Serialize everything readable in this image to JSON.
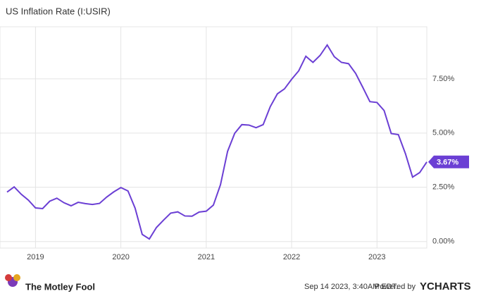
{
  "chart_data": {
    "type": "line",
    "title": "US Inflation Rate (I:USIR)",
    "x": [
      "2018-09",
      "2018-10",
      "2018-11",
      "2018-12",
      "2019-01",
      "2019-02",
      "2019-03",
      "2019-04",
      "2019-05",
      "2019-06",
      "2019-07",
      "2019-08",
      "2019-09",
      "2019-10",
      "2019-11",
      "2019-12",
      "2020-01",
      "2020-02",
      "2020-03",
      "2020-04",
      "2020-05",
      "2020-06",
      "2020-07",
      "2020-08",
      "2020-09",
      "2020-10",
      "2020-11",
      "2020-12",
      "2021-01",
      "2021-02",
      "2021-03",
      "2021-04",
      "2021-05",
      "2021-06",
      "2021-07",
      "2021-08",
      "2021-09",
      "2021-10",
      "2021-11",
      "2021-12",
      "2022-01",
      "2022-02",
      "2022-03",
      "2022-04",
      "2022-05",
      "2022-06",
      "2022-07",
      "2022-08",
      "2022-09",
      "2022-10",
      "2022-11",
      "2022-12",
      "2023-01",
      "2023-02",
      "2023-03",
      "2023-04",
      "2023-05",
      "2023-06",
      "2023-07",
      "2023-08"
    ],
    "series": [
      {
        "name": "US Inflation Rate",
        "color": "#6b3fd4",
        "values": [
          2.28,
          2.52,
          2.18,
          1.91,
          1.55,
          1.52,
          1.86,
          2.0,
          1.79,
          1.65,
          1.81,
          1.75,
          1.71,
          1.76,
          2.05,
          2.29,
          2.49,
          2.33,
          1.54,
          0.33,
          0.12,
          0.65,
          0.99,
          1.31,
          1.37,
          1.18,
          1.17,
          1.36,
          1.4,
          1.68,
          2.62,
          4.16,
          4.99,
          5.39,
          5.37,
          5.25,
          5.39,
          6.22,
          6.81,
          7.04,
          7.48,
          7.87,
          8.54,
          8.26,
          8.58,
          9.06,
          8.52,
          8.26,
          8.2,
          7.75,
          7.11,
          6.45,
          6.41,
          6.04,
          4.98,
          4.93,
          4.05,
          2.97,
          3.18,
          3.67
        ],
        "value_labels": [
          null,
          null,
          null,
          null,
          null,
          null,
          null,
          null,
          null,
          null,
          null,
          null,
          null,
          null,
          null,
          null,
          null,
          null,
          null,
          null,
          null,
          null,
          null,
          null,
          null,
          null,
          null,
          null,
          null,
          null,
          null,
          null,
          null,
          null,
          null,
          null,
          null,
          null,
          null,
          null,
          null,
          null,
          null,
          null,
          null,
          null,
          null,
          null,
          null,
          null,
          null,
          null,
          null,
          null,
          null,
          null,
          null,
          null,
          null,
          "3.67%"
        ]
      }
    ],
    "xlim": [
      "2018-09",
      "2023-08"
    ],
    "xticks": [
      {
        "value": "2019-01",
        "label": "2019"
      },
      {
        "value": "2020-01",
        "label": "2020"
      },
      {
        "value": "2021-01",
        "label": "2021"
      },
      {
        "value": "2022-01",
        "label": "2022"
      },
      {
        "value": "2023-01",
        "label": "2023"
      }
    ],
    "ylim": [
      -0.3,
      9.9
    ],
    "yticks": [
      {
        "value": 0,
        "label": "0.00%"
      },
      {
        "value": 2.5,
        "label": "2.50%"
      },
      {
        "value": 5,
        "label": "5.00%"
      },
      {
        "value": 7.5,
        "label": "7.50%"
      }
    ],
    "grid": true
  },
  "footer": {
    "brand": "The Motley Fool",
    "timestamp": "Sep 14 2023, 3:40AM EDT.",
    "powered": "Powered by",
    "provider": "YCHARTS"
  }
}
